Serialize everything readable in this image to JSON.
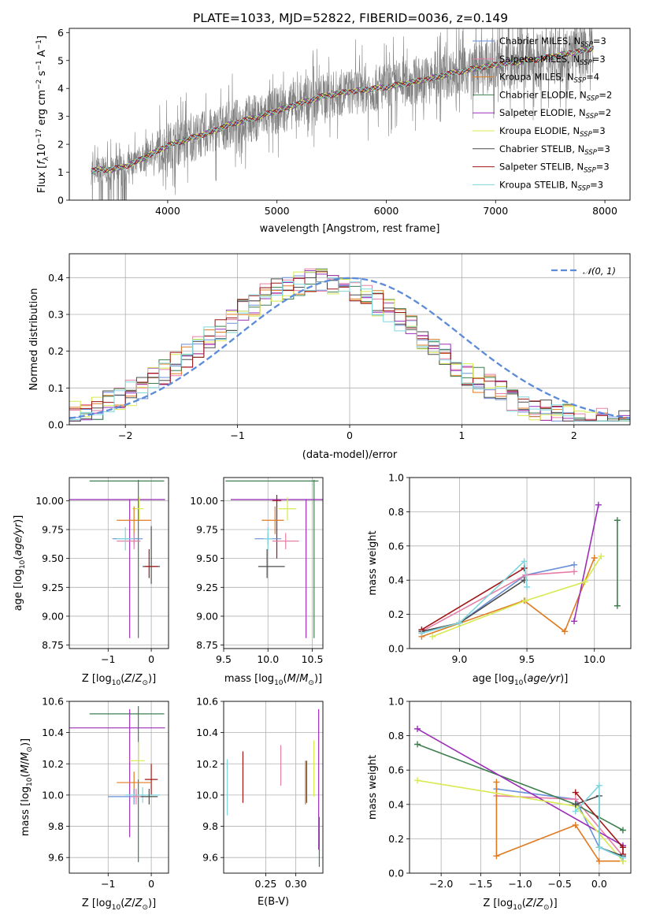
{
  "figure_title": "PLATE=1033, MJD=52822, FIBERID=0036, z=0.149",
  "model_colors": {
    "Chabrier MILES": "#6a8fdb",
    "Salpeter MILES": "#e57fa6",
    "Kroupa MILES": "#e07b22",
    "Chabrier ELODIE": "#3f7f4f",
    "Salpeter ELODIE": "#9b2fb8",
    "Kroupa ELODIE": "#d7ea4f",
    "Chabrier STELIB": "#4c4c4c",
    "Salpeter STELIB": "#a01616",
    "Kroupa STELIB": "#7ed6de"
  },
  "chart_data": [
    {
      "id": "spectrum",
      "type": "line",
      "title": "PLATE=1033, MJD=52822, FIBERID=0036, z=0.149",
      "xlabel": "wavelength [Angstrom, rest frame]",
      "ylabel_parts": [
        "Flux [",
        "f",
        "λ",
        "10",
        "−17",
        " erg cm",
        "−2",
        " s",
        "−1",
        " A",
        "−1",
        "]"
      ],
      "xlim": [
        3100,
        8230
      ],
      "ylim": [
        0,
        6.15
      ],
      "xticks": [
        4000,
        5000,
        6000,
        7000,
        8000
      ],
      "yticks": [
        0,
        1,
        2,
        3,
        4,
        5,
        6
      ],
      "grid": false,
      "legend_position": "top-right",
      "data_color": "#808080",
      "data_x": [
        3300,
        3400,
        3500,
        3600,
        3700,
        3800,
        3900,
        4000,
        4200,
        4400,
        4600,
        4800,
        5000,
        5200,
        5400,
        5600,
        5800,
        6000,
        6200,
        6400,
        6600,
        6800,
        7000,
        7200,
        7400,
        7600,
        7800,
        7900
      ],
      "data_y": [
        1.05,
        1.1,
        1.1,
        1.2,
        1.35,
        1.55,
        1.75,
        1.95,
        2.2,
        2.45,
        2.75,
        2.95,
        3.2,
        3.45,
        3.7,
        3.85,
        3.95,
        4.05,
        4.2,
        4.35,
        4.55,
        4.7,
        4.85,
        4.95,
        5.05,
        5.2,
        5.35,
        5.45
      ],
      "legend": [
        {
          "name": "Chabrier MILES",
          "sub": "SSP",
          "n": "3"
        },
        {
          "name": "Salpeter MILES",
          "sub": "SSP",
          "n": "3"
        },
        {
          "name": "Kroupa MILES",
          "sub": "SSP",
          "n": "4"
        },
        {
          "name": "Chabrier ELODIE",
          "sub": "SSP",
          "n": "2"
        },
        {
          "name": "Salpeter ELODIE",
          "sub": "SSP",
          "n": "2"
        },
        {
          "name": "Kroupa ELODIE",
          "sub": "SSP",
          "n": "3"
        },
        {
          "name": "Chabrier STELIB",
          "sub": "SSP",
          "n": "3"
        },
        {
          "name": "Salpeter STELIB",
          "sub": "SSP",
          "n": "3"
        },
        {
          "name": "Kroupa STELIB",
          "sub": "SSP",
          "n": "3"
        }
      ]
    },
    {
      "id": "residuals",
      "type": "histogram",
      "xlabel": "(data-model)/error",
      "ylabel": "Normed distribution",
      "xlim": [
        -2.5,
        2.5
      ],
      "ylim": [
        0,
        0.465
      ],
      "xticks": [
        -2,
        -1,
        0,
        1,
        2
      ],
      "yticks": [
        0.0,
        0.1,
        0.2,
        0.3,
        0.4
      ],
      "grid": true,
      "legend_position": "top-right",
      "reference_curve": {
        "label": "𝒩(0, 1)",
        "color": "#5b8bd9",
        "mean": 0,
        "sigma": 1
      },
      "bin_width": 0.1,
      "bins_start": -2.5
    },
    {
      "id": "age-vs-Z",
      "type": "errorbar",
      "xlabel": "Z [log10(Z/Z☉)]",
      "ylabel": "age  [log10(age/yr)]",
      "xlim": [
        -1.9,
        0.4
      ],
      "ylim": [
        8.72,
        10.2
      ],
      "xticks": [
        -1,
        0
      ],
      "yticks": [
        8.75,
        9.0,
        9.25,
        9.5,
        9.75,
        10.0
      ],
      "grid": true,
      "points": [
        {
          "model": "Chabrier ELODIE",
          "x": -0.3,
          "y": 10.17,
          "xerr": [
            1.13,
            0.6
          ],
          "yerr": [
            1.36,
            0.01
          ]
        },
        {
          "model": "Salpeter ELODIE",
          "x": -0.5,
          "y": 10.01,
          "xerr": [
            1.8,
            0.82
          ],
          "yerr": [
            1.2,
            0.0
          ]
        },
        {
          "model": "Kroupa ELODIE",
          "x": -0.28,
          "y": 9.93,
          "xerr": [
            0.15,
            0.1
          ],
          "yerr": [
            0.1,
            0.1
          ]
        },
        {
          "model": "Kroupa MILES",
          "x": -0.4,
          "y": 9.83,
          "xerr": [
            0.4,
            0.4
          ],
          "yerr": [
            0.12,
            0.12
          ]
        },
        {
          "model": "Chabrier MILES",
          "x": -0.4,
          "y": 9.67,
          "xerr": [
            0.5,
            0.2
          ],
          "yerr": [
            0.05,
            0.05
          ]
        },
        {
          "model": "Salpeter MILES",
          "x": -0.4,
          "y": 9.65,
          "xerr": [
            0.4,
            0.15
          ],
          "yerr": [
            0.07,
            0.07
          ]
        },
        {
          "model": "Kroupa STELIB",
          "x": -0.6,
          "y": 9.67,
          "xerr": [
            0.2,
            0.2
          ],
          "yerr": [
            0.1,
            0.1
          ]
        },
        {
          "model": "Chabrier STELIB",
          "x": 0.0,
          "y": 9.43,
          "xerr": [
            0.2,
            0.2
          ],
          "yerr": [
            0.15,
            0.35
          ]
        },
        {
          "model": "Salpeter STELIB",
          "x": -0.05,
          "y": 9.43,
          "xerr": [
            0.1,
            0.2
          ],
          "yerr": [
            0.1,
            0.15
          ]
        }
      ]
    },
    {
      "id": "age-vs-mass",
      "type": "errorbar",
      "xlabel": "mass [log10(M/M☉)]",
      "ylabel": "",
      "xlim": [
        9.5,
        10.62
      ],
      "ylim": [
        8.72,
        10.2
      ],
      "xticks": [
        9.5,
        10.0,
        10.5
      ],
      "yticks": [
        8.75,
        9.0,
        9.25,
        9.5,
        9.75,
        10.0
      ],
      "grid": true,
      "points": [
        {
          "model": "Chabrier ELODIE",
          "x": 10.52,
          "y": 10.17,
          "xerr": [
            1.0,
            0.05
          ],
          "yerr": [
            1.36,
            0.01
          ]
        },
        {
          "model": "Salpeter ELODIE",
          "x": 10.43,
          "y": 10.01,
          "xerr": [
            0.85,
            0.2
          ],
          "yerr": [
            1.2,
            0.0
          ]
        },
        {
          "model": "Kroupa ELODIE",
          "x": 10.22,
          "y": 9.93,
          "xerr": [
            0.1,
            0.1
          ],
          "yerr": [
            0.1,
            0.1
          ]
        },
        {
          "model": "Salpeter STELIB",
          "x": 10.1,
          "y": 10.0,
          "xerr": [
            0.05,
            0.05
          ],
          "yerr": [
            0.5,
            0.05
          ]
        },
        {
          "model": "Kroupa MILES",
          "x": 10.08,
          "y": 9.83,
          "xerr": [
            0.15,
            0.1
          ],
          "yerr": [
            0.12,
            0.12
          ]
        },
        {
          "model": "Chabrier MILES",
          "x": 10.0,
          "y": 9.67,
          "xerr": [
            0.15,
            0.15
          ],
          "yerr": [
            0.05,
            0.05
          ]
        },
        {
          "model": "Salpeter MILES",
          "x": 10.2,
          "y": 9.65,
          "xerr": [
            0.15,
            0.15
          ],
          "yerr": [
            0.07,
            0.07
          ]
        },
        {
          "model": "Kroupa STELIB",
          "x": 10.0,
          "y": 9.67,
          "xerr": [
            0.05,
            0.05
          ],
          "yerr": [
            0.1,
            0.1
          ]
        },
        {
          "model": "Chabrier STELIB",
          "x": 9.99,
          "y": 9.43,
          "xerr": [
            0.1,
            0.2
          ],
          "yerr": [
            0.1,
            0.15
          ]
        }
      ]
    },
    {
      "id": "weight-vs-age",
      "type": "line",
      "xlabel": "age  [log10(age/yr)]",
      "ylabel": "mass weight",
      "xlim": [
        8.63,
        10.27
      ],
      "ylim": [
        0,
        1.0
      ],
      "xticks": [
        9.0,
        9.5,
        10.0
      ],
      "yticks": [
        0.0,
        0.2,
        0.4,
        0.6,
        0.8,
        1.0
      ],
      "grid": true,
      "series": [
        {
          "model": "Chabrier MILES",
          "x": [
            8.72,
            9.0,
            9.49,
            9.85
          ],
          "y": [
            0.09,
            0.15,
            0.43,
            0.49
          ]
        },
        {
          "model": "Salpeter MILES",
          "x": [
            8.72,
            9.49,
            9.85
          ],
          "y": [
            0.1,
            0.43,
            0.45
          ]
        },
        {
          "model": "Kroupa MILES",
          "x": [
            8.72,
            9.48,
            9.78,
            10.0
          ],
          "y": [
            0.07,
            0.28,
            0.1,
            0.53
          ]
        },
        {
          "model": "Chabrier ELODIE",
          "x": [
            10.17,
            10.17
          ],
          "y": [
            0.25,
            0.75
          ]
        },
        {
          "model": "Salpeter ELODIE",
          "x": [
            9.85,
            10.03
          ],
          "y": [
            0.16,
            0.84
          ]
        },
        {
          "model": "Kroupa ELODIE",
          "x": [
            8.8,
            9.49,
            9.93,
            10.05
          ],
          "y": [
            0.07,
            0.28,
            0.39,
            0.54
          ]
        },
        {
          "model": "Chabrier STELIB",
          "x": [
            8.72,
            9.0,
            9.48
          ],
          "y": [
            0.1,
            0.15,
            0.4
          ]
        },
        {
          "model": "Salpeter STELIB",
          "x": [
            8.72,
            9.48
          ],
          "y": [
            0.11,
            0.47
          ]
        },
        {
          "model": "Kroupa STELIB",
          "x": [
            8.72,
            9.0,
            9.48,
            9.5
          ],
          "y": [
            0.09,
            0.15,
            0.51,
            0.36
          ]
        }
      ]
    },
    {
      "id": "mass-vs-Z",
      "type": "errorbar",
      "xlabel": "Z [log10(Z/Z☉)]",
      "ylabel": "mass [log10(M/M☉)]",
      "xlim": [
        -1.9,
        0.4
      ],
      "ylim": [
        9.5,
        10.6
      ],
      "xticks": [
        -1,
        0
      ],
      "yticks": [
        9.6,
        9.8,
        10.0,
        10.2,
        10.4,
        10.6
      ],
      "grid": true,
      "points": [
        {
          "model": "Chabrier ELODIE",
          "x": -0.3,
          "y": 10.52,
          "xerr": [
            1.13,
            0.6
          ],
          "yerr": [
            0.95,
            0.05
          ]
        },
        {
          "model": "Salpeter ELODIE",
          "x": -0.5,
          "y": 10.43,
          "xerr": [
            1.8,
            0.82
          ],
          "yerr": [
            0.7,
            0.12
          ]
        },
        {
          "model": "Kroupa ELODIE",
          "x": -0.3,
          "y": 10.22,
          "xerr": [
            0.2,
            0.15
          ],
          "yerr": [
            0.12,
            0.12
          ]
        },
        {
          "model": "Salpeter STELIB",
          "x": 0.0,
          "y": 10.1,
          "xerr": [
            0.15,
            0.15
          ],
          "yerr": [
            0.1,
            0.1
          ]
        },
        {
          "model": "Kroupa MILES",
          "x": -0.4,
          "y": 10.08,
          "xerr": [
            0.4,
            0.4
          ],
          "yerr": [
            0.07,
            0.07
          ]
        },
        {
          "model": "Chabrier MILES",
          "x": -0.4,
          "y": 9.99,
          "xerr": [
            0.6,
            0.1
          ],
          "yerr": [
            0.05,
            0.05
          ]
        },
        {
          "model": "Kroupa STELIB",
          "x": -0.2,
          "y": 10.0,
          "xerr": [
            0.4,
            0.4
          ],
          "yerr": [
            0.05,
            0.05
          ]
        },
        {
          "model": "Chabrier STELIB",
          "x": -0.05,
          "y": 9.99,
          "xerr": [
            0.2,
            0.2
          ],
          "yerr": [
            0.05,
            0.05
          ]
        },
        {
          "model": "Salpeter MILES",
          "x": -0.35,
          "y": 9.99,
          "xerr": [
            0.1,
            0.1
          ],
          "yerr": [
            0.05,
            0.05
          ]
        }
      ]
    },
    {
      "id": "mass-vs-ebv",
      "type": "errorbar",
      "xlabel": "E(B-V)",
      "ylabel": "",
      "xlim": [
        0.18,
        0.345
      ],
      "ylim": [
        9.5,
        10.6
      ],
      "xticks": [
        0.25,
        0.3
      ],
      "xtick_labels": [
        "0.25",
        "0.30"
      ],
      "yticks": [
        9.6,
        9.8,
        10.0,
        10.2,
        10.4,
        10.6
      ],
      "grid": true,
      "points": [
        {
          "model": "Kroupa STELIB",
          "x": 0.186,
          "y": 10.05,
          "xerr": [
            0,
            0
          ],
          "yerr": [
            0.18,
            0.18
          ]
        },
        {
          "model": "Salpeter STELIB",
          "x": 0.212,
          "y": 10.12,
          "xerr": [
            0,
            0
          ],
          "yerr": [
            0.17,
            0.16
          ]
        },
        {
          "model": "Salpeter MILES",
          "x": 0.275,
          "y": 10.19,
          "xerr": [
            0,
            0
          ],
          "yerr": [
            0.13,
            0.13
          ]
        },
        {
          "model": "Kroupa MILES",
          "x": 0.316,
          "y": 10.08,
          "xerr": [
            0,
            0
          ],
          "yerr": [
            0.14,
            0.14
          ]
        },
        {
          "model": "Chabrier STELIB",
          "x": 0.318,
          "y": 10.07,
          "xerr": [
            0,
            0
          ],
          "yerr": [
            0.12,
            0.15
          ]
        },
        {
          "model": "Kroupa ELODIE",
          "x": 0.33,
          "y": 10.17,
          "xerr": [
            0,
            0
          ],
          "yerr": [
            0.18,
            0.18
          ]
        },
        {
          "model": "Salpeter ELODIE",
          "x": 0.338,
          "y": 10.1,
          "xerr": [
            0,
            0
          ],
          "yerr": [
            0.45,
            0.45
          ]
        },
        {
          "model": "Chabrier ELODIE",
          "x": 0.339,
          "y": 9.7,
          "xerr": [
            0,
            0
          ],
          "yerr": [
            0.16,
            0.16
          ]
        }
      ]
    },
    {
      "id": "weight-vs-Z",
      "type": "line",
      "xlabel": "Z [log10(Z/Z☉)]",
      "ylabel": "mass weight",
      "xlim": [
        -2.4,
        0.4
      ],
      "ylim": [
        0,
        1.0
      ],
      "xticks": [
        -2.0,
        -1.5,
        -1.0,
        -0.5,
        0.0
      ],
      "xtick_labels": [
        "−2.0",
        "−1.5",
        "−1.0",
        "−0.5",
        "0.0"
      ],
      "yticks": [
        0.0,
        0.2,
        0.4,
        0.6,
        0.8,
        1.0
      ],
      "grid": true,
      "series": [
        {
          "model": "Chabrier MILES",
          "x": [
            -1.3,
            -0.3,
            0.0,
            0.3
          ],
          "y": [
            0.49,
            0.43,
            0.15,
            0.09
          ]
        },
        {
          "model": "Salpeter MILES",
          "x": [
            -1.3,
            -0.3,
            0.3
          ],
          "y": [
            0.45,
            0.43,
            0.1
          ]
        },
        {
          "model": "Kroupa MILES",
          "x": [
            -1.3,
            -1.3,
            -0.3,
            0.0,
            0.3
          ],
          "y": [
            0.53,
            0.1,
            0.28,
            0.07,
            0.07
          ]
        },
        {
          "model": "Chabrier ELODIE",
          "x": [
            -2.3,
            -0.3,
            0.3
          ],
          "y": [
            0.75,
            0.4,
            0.25
          ]
        },
        {
          "model": "Salpeter ELODIE",
          "x": [
            -2.3,
            0.3
          ],
          "y": [
            0.84,
            0.16
          ]
        },
        {
          "model": "Kroupa ELODIE",
          "x": [
            -2.3,
            -0.3,
            0.3
          ],
          "y": [
            0.54,
            0.39,
            0.07
          ]
        },
        {
          "model": "Chabrier STELIB",
          "x": [
            -0.3,
            0.0,
            0.0,
            0.3
          ],
          "y": [
            0.4,
            0.45,
            0.15,
            0.1
          ]
        },
        {
          "model": "Salpeter STELIB",
          "x": [
            -0.3,
            0.3,
            0.3
          ],
          "y": [
            0.47,
            0.15,
            0.11
          ]
        },
        {
          "model": "Kroupa STELIB",
          "x": [
            -0.3,
            0.0,
            0.0,
            0.3
          ],
          "y": [
            0.36,
            0.51,
            0.15,
            0.09
          ]
        }
      ]
    }
  ]
}
